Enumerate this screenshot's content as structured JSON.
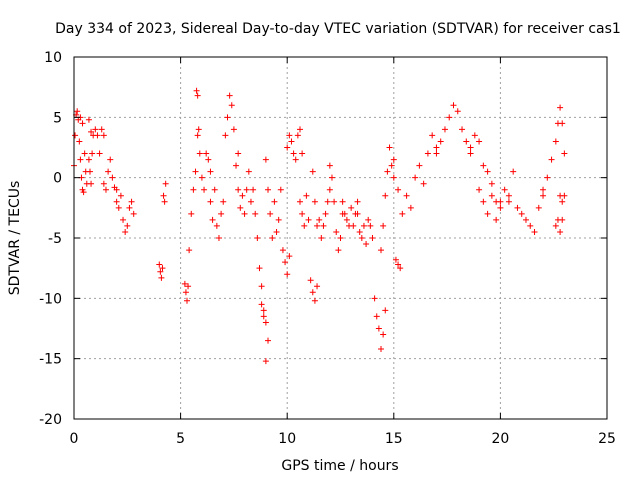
{
  "chart_data": {
    "type": "scatter",
    "title": "Day 334 of 2023, Sidereal Day-to-day VTEC variation (SDTVAR) for receiver cas1",
    "xlabel": "GPS time / hours",
    "ylabel": "SDTVAR / TECUs",
    "xlim": [
      0,
      25
    ],
    "ylim": [
      -20,
      10
    ],
    "x_ticks": [
      0,
      5,
      10,
      15,
      20,
      25
    ],
    "y_ticks": [
      -20,
      -15,
      -10,
      -5,
      0,
      5,
      10
    ],
    "x_tick_labels": [
      "0",
      "5",
      "10",
      "15",
      "20",
      "25"
    ],
    "y_tick_labels": [
      "-20",
      "-15",
      "-10",
      "-5",
      "0",
      "5",
      "10"
    ],
    "grid": true,
    "marker": "+",
    "series_color": "#ff0000",
    "series": [
      {
        "name": "SDTVAR",
        "segments": [
          {
            "x": [
              0.0,
              0.05,
              0.1,
              0.15,
              0.2,
              0.25,
              0.3,
              0.35,
              0.4,
              0.45
            ],
            "y": [
              1.0,
              3.5,
              5.2,
              5.5,
              4.8,
              3.0,
              1.5,
              0.0,
              -1.0,
              -1.2
            ]
          },
          {
            "x": [
              0.3,
              0.4,
              0.5,
              0.55,
              0.6,
              0.7,
              0.75,
              0.8
            ],
            "y": [
              5.0,
              4.5,
              2.0,
              0.5,
              -0.5,
              1.5,
              0.5,
              -0.5
            ]
          },
          {
            "x": [
              0.7,
              0.8,
              0.85,
              0.9,
              1.0,
              1.1,
              1.2,
              1.3,
              1.4
            ],
            "y": [
              4.8,
              3.8,
              2.0,
              3.5,
              4.0,
              3.5,
              2.0,
              4.0,
              3.5
            ]
          },
          {
            "x": [
              1.4,
              1.5,
              1.6,
              1.7,
              1.8,
              1.9,
              2.0
            ],
            "y": [
              -0.5,
              -1.0,
              0.5,
              1.5,
              0.0,
              -0.8,
              -1.0
            ]
          },
          {
            "x": [
              2.0,
              2.1,
              2.2,
              2.3,
              2.4,
              2.5,
              2.6,
              2.7,
              2.8
            ],
            "y": [
              -2.0,
              -2.5,
              -1.5,
              -3.5,
              -4.5,
              -4.0,
              -2.5,
              -2.0,
              -3.0
            ]
          },
          {
            "x": [
              4.0,
              4.05,
              4.1,
              4.15
            ],
            "y": [
              -7.2,
              -7.8,
              -8.3,
              -7.5
            ]
          },
          {
            "x": [
              4.2,
              4.25,
              4.3
            ],
            "y": [
              -1.5,
              -2.0,
              -0.5
            ]
          },
          {
            "x": [
              5.2,
              5.25,
              5.3,
              5.35,
              5.4,
              5.5,
              5.6,
              5.7
            ],
            "y": [
              -8.8,
              -9.5,
              -10.2,
              -9.0,
              -6.0,
              -3.0,
              -1.0,
              0.5
            ]
          },
          {
            "x": [
              5.75,
              5.8,
              5.85
            ],
            "y": [
              7.2,
              6.8,
              4.0
            ]
          },
          {
            "x": [
              5.8,
              5.9,
              6.0,
              6.1,
              6.2,
              6.3,
              6.4
            ],
            "y": [
              3.5,
              2.0,
              0.0,
              -1.0,
              2.0,
              1.5,
              0.5
            ]
          },
          {
            "x": [
              6.4,
              6.5,
              6.6,
              6.7,
              6.8,
              6.9,
              7.0
            ],
            "y": [
              -2.0,
              -3.5,
              -1.0,
              -4.0,
              -5.0,
              -3.0,
              -2.0
            ]
          },
          {
            "x": [
              7.1,
              7.2,
              7.3,
              7.4,
              7.5,
              7.6,
              7.7
            ],
            "y": [
              3.5,
              5.0,
              6.8,
              6.0,
              4.0,
              1.0,
              2.0
            ]
          },
          {
            "x": [
              7.7,
              7.8,
              7.9,
              8.0,
              8.1,
              8.2,
              8.3,
              8.4
            ],
            "y": [
              -1.0,
              -2.5,
              -1.5,
              -3.0,
              -1.0,
              0.5,
              -2.0,
              -1.0
            ]
          },
          {
            "x": [
              8.5,
              8.6,
              8.7,
              8.8,
              8.9,
              9.0
            ],
            "y": [
              -3.0,
              -5.0,
              -7.5,
              -9.0,
              -11.0,
              -15.2
            ]
          },
          {
            "x": [
              8.8,
              8.9,
              9.0,
              9.1
            ],
            "y": [
              -10.5,
              -11.5,
              -12.0,
              -13.5
            ]
          },
          {
            "x": [
              9.0,
              9.1,
              9.2,
              9.3,
              9.4,
              9.5,
              9.6,
              9.7
            ],
            "y": [
              1.5,
              -1.0,
              -3.0,
              -5.0,
              -2.0,
              -4.5,
              -3.5,
              -1.0
            ]
          },
          {
            "x": [
              9.8,
              9.9,
              10.0,
              10.1
            ],
            "y": [
              -6.0,
              -7.0,
              -8.0,
              -6.5
            ]
          },
          {
            "x": [
              10.0,
              10.1,
              10.2,
              10.3,
              10.4,
              10.5,
              10.6,
              10.7
            ],
            "y": [
              2.5,
              3.5,
              3.0,
              2.0,
              1.5,
              3.5,
              4.0,
              2.0
            ]
          },
          {
            "x": [
              10.6,
              10.7,
              10.8,
              10.9,
              11.0
            ],
            "y": [
              -2.0,
              -3.0,
              -4.0,
              -1.5,
              -3.5
            ]
          },
          {
            "x": [
              11.1,
              11.2,
              11.3,
              11.4
            ],
            "y": [
              -8.5,
              -9.5,
              -10.2,
              -9.0
            ]
          },
          {
            "x": [
              11.2,
              11.3,
              11.4,
              11.5,
              11.6,
              11.7,
              11.8,
              11.9,
              12.0
            ],
            "y": [
              0.5,
              -2.0,
              -4.0,
              -3.5,
              -5.0,
              -4.0,
              -3.0,
              -2.0,
              -1.0
            ]
          },
          {
            "x": [
              12.0,
              12.1,
              12.2,
              12.3,
              12.4,
              12.5,
              12.6
            ],
            "y": [
              1.0,
              0.0,
              -2.0,
              -4.5,
              -6.0,
              -5.0,
              -3.0
            ]
          },
          {
            "x": [
              12.6,
              12.7,
              12.8,
              12.9,
              13.0,
              13.1,
              13.2,
              13.3
            ],
            "y": [
              -2.0,
              -3.0,
              -3.5,
              -4.0,
              -2.5,
              -4.0,
              -3.0,
              -2.0
            ]
          },
          {
            "x": [
              13.3,
              13.4,
              13.5,
              13.6,
              13.7,
              13.8,
              13.9,
              14.0
            ],
            "y": [
              -3.0,
              -4.5,
              -5.0,
              -4.0,
              -5.5,
              -3.5,
              -4.0,
              -5.0
            ]
          },
          {
            "x": [
              14.1,
              14.2,
              14.3,
              14.4,
              14.5,
              14.6
            ],
            "y": [
              -10.0,
              -11.5,
              -12.5,
              -14.2,
              -13.0,
              -11.0
            ]
          },
          {
            "x": [
              14.4,
              14.5,
              14.6,
              14.7,
              14.8,
              14.9,
              15.0
            ],
            "y": [
              -6.0,
              -4.0,
              -1.5,
              0.5,
              2.5,
              1.0,
              0.0
            ]
          },
          {
            "x": [
              15.1,
              15.2,
              15.3
            ],
            "y": [
              -6.8,
              -7.2,
              -7.5
            ]
          },
          {
            "x": [
              15.0,
              15.2,
              15.4,
              15.6,
              15.8,
              16.0,
              16.2,
              16.4,
              16.6,
              16.8,
              17.0
            ],
            "y": [
              1.5,
              -1.0,
              -3.0,
              -1.5,
              -2.5,
              0.0,
              1.0,
              -0.5,
              2.0,
              3.5,
              2.5
            ]
          },
          {
            "x": [
              17.0,
              17.2,
              17.4,
              17.6,
              17.8,
              18.0,
              18.2,
              18.4,
              18.6
            ],
            "y": [
              2.0,
              3.0,
              4.0,
              5.0,
              6.0,
              5.5,
              4.0,
              3.0,
              2.5
            ]
          },
          {
            "x": [
              18.6,
              18.8,
              19.0,
              19.2,
              19.4,
              19.6,
              19.8,
              20.0
            ],
            "y": [
              2.0,
              3.5,
              3.0,
              1.0,
              0.5,
              -0.5,
              -2.0,
              -2.5
            ]
          },
          {
            "x": [
              19.0,
              19.2,
              19.4,
              19.6,
              19.8,
              20.0,
              20.2,
              20.4
            ],
            "y": [
              -1.0,
              -2.0,
              -3.0,
              -1.5,
              -3.5,
              -2.0,
              -1.0,
              -2.0
            ]
          },
          {
            "x": [
              20.4,
              20.6,
              20.8,
              21.0,
              21.2,
              21.4,
              21.6,
              21.8,
              22.0
            ],
            "y": [
              -1.5,
              0.5,
              -2.5,
              -3.0,
              -3.5,
              -4.0,
              -4.5,
              -2.5,
              -1.0
            ]
          },
          {
            "x": [
              22.0,
              22.2,
              22.4,
              22.6,
              22.7,
              22.8,
              22.9,
              23.0
            ],
            "y": [
              -1.5,
              0.0,
              1.5,
              3.0,
              4.5,
              5.8,
              4.5,
              2.0
            ]
          },
          {
            "x": [
              22.6,
              22.7,
              22.8,
              22.9
            ],
            "y": [
              -4.0,
              -3.5,
              -4.5,
              -3.5
            ]
          },
          {
            "x": [
              22.8,
              22.9,
              23.0
            ],
            "y": [
              -1.5,
              -2.0,
              -1.5
            ]
          }
        ]
      }
    ]
  }
}
